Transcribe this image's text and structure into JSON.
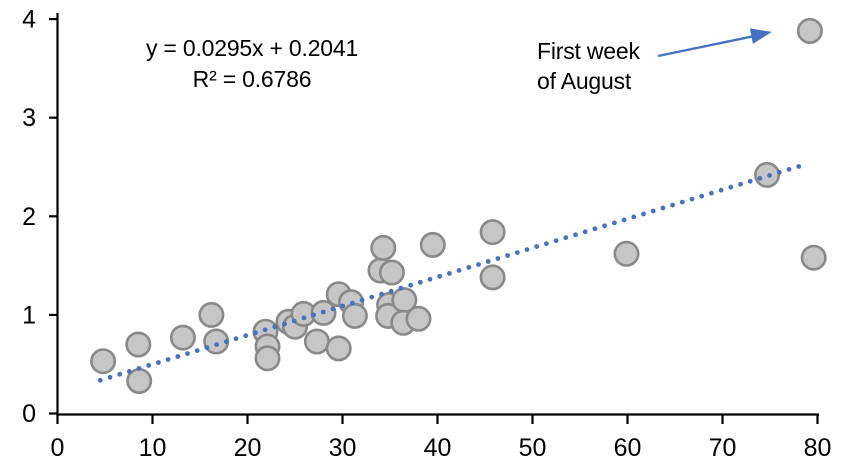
{
  "chart_data": {
    "type": "scatter",
    "title": "",
    "xlabel": "",
    "ylabel": "",
    "xlim": [
      0,
      80
    ],
    "ylim": [
      0,
      4
    ],
    "xticks": [
      0,
      10,
      20,
      30,
      40,
      50,
      60,
      70,
      80
    ],
    "yticks": [
      0,
      1,
      2,
      3,
      4
    ],
    "grid": false,
    "legend_position": "none",
    "equation_label": "y = 0.0295x + 0.2041",
    "r_squared_label": "R² = 0.6786",
    "annotation": {
      "line1": "First week",
      "line2": "of August",
      "points_to": [
        79.2,
        3.88
      ]
    },
    "points": [
      [
        4.8,
        0.53
      ],
      [
        8.5,
        0.7
      ],
      [
        8.6,
        0.33
      ],
      [
        13.2,
        0.77
      ],
      [
        16.2,
        1.0
      ],
      [
        16.7,
        0.73
      ],
      [
        21.9,
        0.83
      ],
      [
        22.1,
        0.68
      ],
      [
        22.1,
        0.56
      ],
      [
        24.3,
        0.93
      ],
      [
        25.0,
        0.88
      ],
      [
        25.9,
        1.01
      ],
      [
        27.3,
        0.73
      ],
      [
        28.0,
        1.02
      ],
      [
        29.6,
        1.21
      ],
      [
        29.6,
        0.66
      ],
      [
        30.9,
        1.13
      ],
      [
        31.3,
        0.99
      ],
      [
        34.0,
        1.45
      ],
      [
        34.3,
        1.68
      ],
      [
        35.2,
        1.43
      ],
      [
        34.9,
        1.1
      ],
      [
        34.8,
        0.99
      ],
      [
        36.5,
        1.15
      ],
      [
        36.4,
        0.92
      ],
      [
        38.0,
        0.96
      ],
      [
        39.5,
        1.71
      ],
      [
        45.8,
        1.84
      ],
      [
        45.8,
        1.38
      ],
      [
        59.9,
        1.62
      ],
      [
        74.7,
        2.42
      ],
      [
        79.2,
        3.88
      ],
      [
        79.6,
        1.58
      ]
    ],
    "trendline": {
      "slope": 0.0295,
      "intercept": 0.2041,
      "x_start": 4.5,
      "x_end": 78.7,
      "style": "dotted"
    },
    "colors": {
      "marker_fill": "#c6c6c6",
      "marker_stroke": "#898989",
      "trendline": "#4472c4",
      "arrow": "#4472c4",
      "axis": "#000000",
      "text": "#000000"
    }
  }
}
